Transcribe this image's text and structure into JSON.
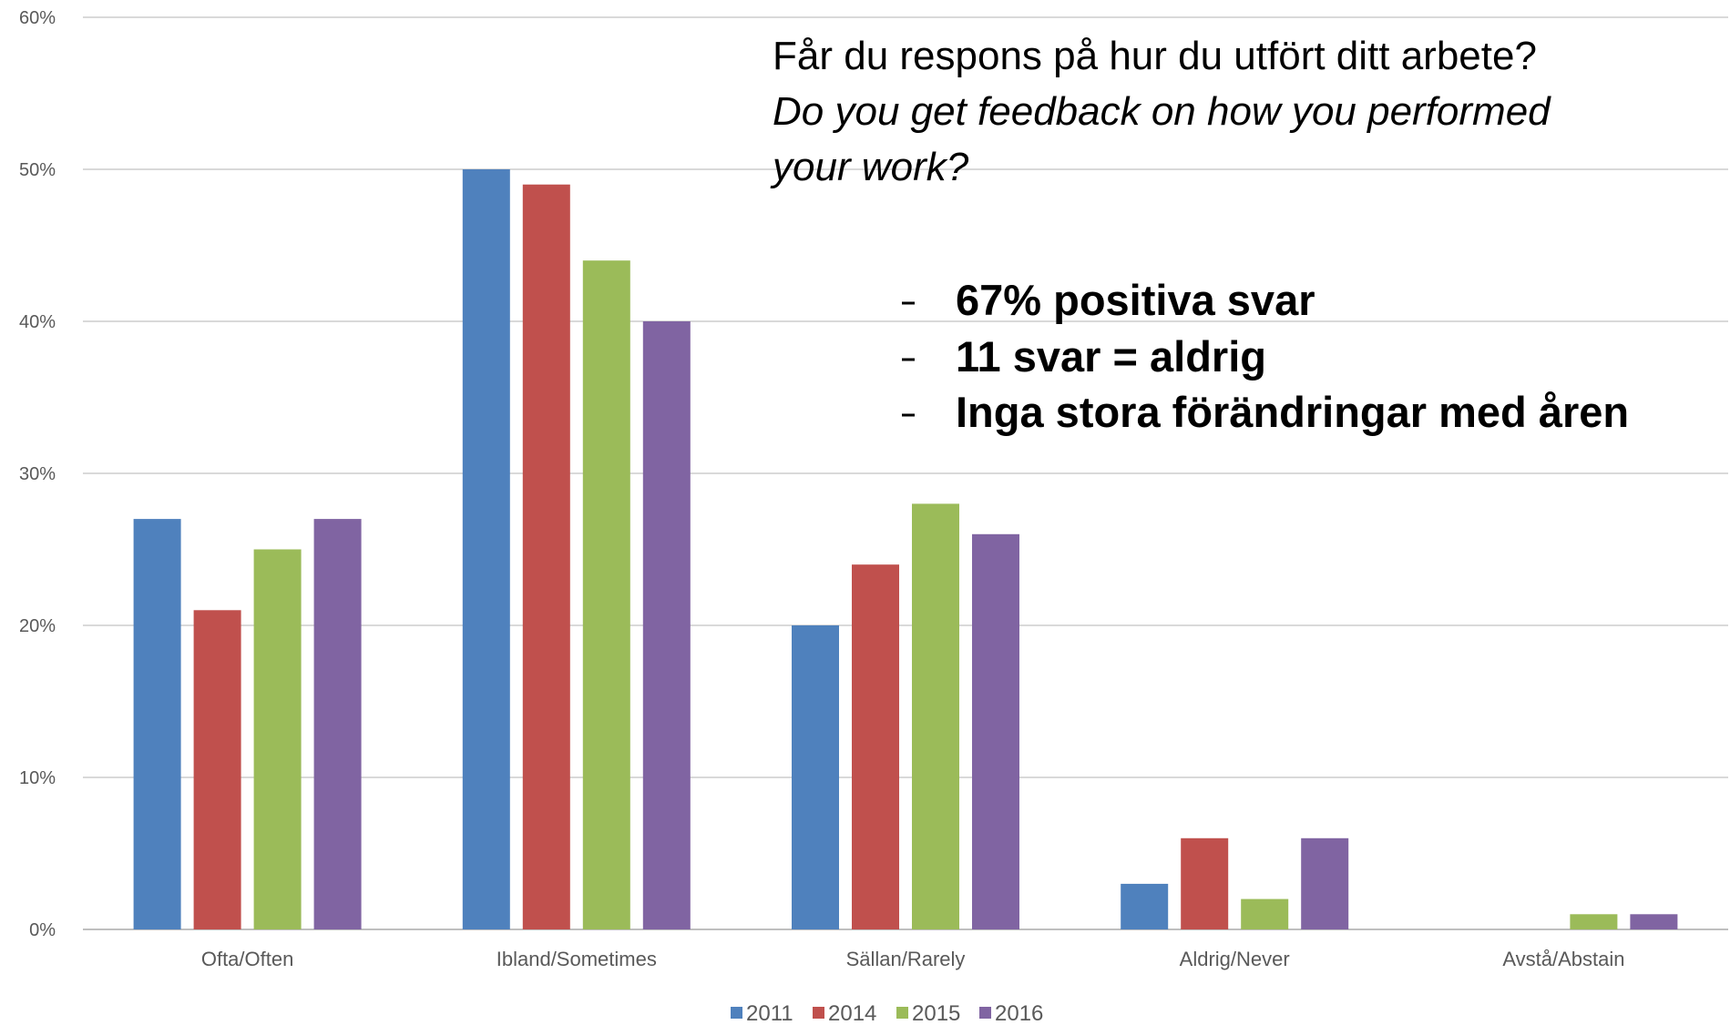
{
  "chart_data": {
    "type": "bar",
    "title": "Får du respons på hur du utfört ditt arbete?",
    "subtitle": [
      "Do you get feedback on how you performed",
      "your work?"
    ],
    "annotations": [
      "67% positiva svar",
      "11 svar = aldrig",
      "Inga stora förändringar med åren"
    ],
    "categories": [
      "Ofta/Often",
      "Ibland/Sometimes",
      "Sällan/Rarely",
      "Aldrig/Never",
      "Avstå/Abstain"
    ],
    "series": [
      {
        "name": "2011",
        "color": "#4f81bd",
        "values": [
          27,
          50,
          20,
          3,
          0
        ]
      },
      {
        "name": "2014",
        "color": "#c0504d",
        "values": [
          21,
          49,
          24,
          6,
          0
        ]
      },
      {
        "name": "2015",
        "color": "#9bbb59",
        "values": [
          25,
          44,
          28,
          2,
          1
        ]
      },
      {
        "name": "2016",
        "color": "#8064a2",
        "values": [
          27,
          40,
          26,
          6,
          1
        ]
      }
    ],
    "ylim": [
      0,
      60
    ],
    "yticks": [
      {
        "value": 0,
        "label": "0%"
      },
      {
        "value": 10,
        "label": "10%"
      },
      {
        "value": 20,
        "label": "20%"
      },
      {
        "value": 30,
        "label": "30%"
      },
      {
        "value": 40,
        "label": "40%"
      },
      {
        "value": 50,
        "label": "50%"
      },
      {
        "value": 60,
        "label": "60%"
      }
    ],
    "grid": true,
    "legend": "bottom"
  }
}
